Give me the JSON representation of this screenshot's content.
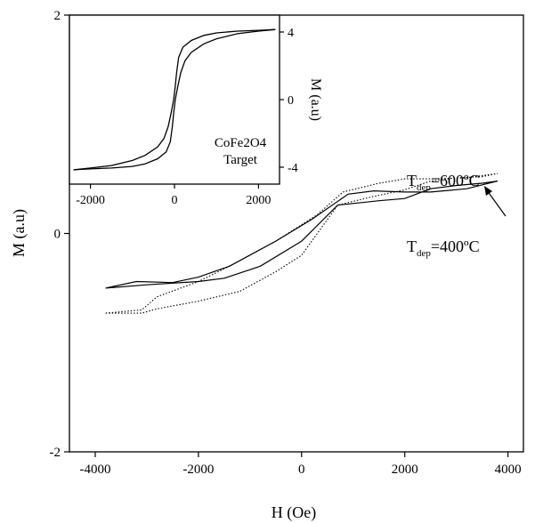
{
  "chart_data": [
    {
      "type": "line",
      "xlabel": "H (Oe)",
      "ylabel": "M (a.u)",
      "xlim": [
        -4500,
        4300
      ],
      "ylim": [
        -2,
        2
      ],
      "xticks": [
        -4000,
        -2000,
        0,
        2000,
        4000
      ],
      "yticks": [
        -2,
        0,
        2
      ],
      "xtick_labels": [
        "-4000",
        "-2000",
        "0",
        "2000",
        "4000"
      ],
      "ytick_labels": [
        "-2",
        "0",
        "2"
      ],
      "annotations": [
        {
          "base": "T",
          "sub": "dep",
          "rest": "=600ºC"
        },
        {
          "base": "T",
          "sub": "dep",
          "rest": "=400ºC"
        }
      ],
      "series": [
        {
          "style": "dotted",
          "x": [
            -3800,
            -3100,
            -2800,
            -2000,
            -1200,
            -500,
            0,
            700,
            1400,
            2000,
            2500,
            3000,
            3500,
            3800,
            3800,
            3200,
            2500,
            2000,
            1500,
            800,
            300,
            -500,
            -1400,
            -2000,
            -2800,
            -3100,
            -3800
          ],
          "y": [
            -0.73,
            -0.73,
            -0.69,
            -0.62,
            -0.53,
            -0.35,
            -0.2,
            0.26,
            0.34,
            0.4,
            0.48,
            0.51,
            0.52,
            0.55,
            0.55,
            0.51,
            0.5,
            0.5,
            0.46,
            0.38,
            0.17,
            -0.07,
            -0.3,
            -0.44,
            -0.58,
            -0.7,
            -0.73
          ]
        },
        {
          "style": "solid",
          "x": [
            -3800,
            -3000,
            -2000,
            -1500,
            -800,
            0,
            700,
            1500,
            2000,
            2500,
            3000,
            3500,
            3800,
            3800,
            3200,
            2500,
            2000,
            1400,
            900,
            200,
            -500,
            -1400,
            -2000,
            -2500,
            -3200,
            -3800
          ],
          "y": [
            -0.5,
            -0.47,
            -0.44,
            -0.41,
            -0.3,
            -0.07,
            0.26,
            0.3,
            0.32,
            0.41,
            0.44,
            0.46,
            0.48,
            0.48,
            0.41,
            0.38,
            0.38,
            0.39,
            0.36,
            0.13,
            -0.07,
            -0.3,
            -0.4,
            -0.45,
            -0.44,
            -0.5
          ]
        }
      ]
    },
    {
      "type": "line",
      "xlabel": "",
      "ylabel": "M (a.u)",
      "xlim": [
        -2500,
        2500
      ],
      "ylim": [
        -5,
        5
      ],
      "xticks": [
        -2000,
        0,
        2000
      ],
      "yticks": [
        -4,
        0,
        4
      ],
      "xtick_labels": [
        "-2000",
        "0",
        "2000"
      ],
      "ytick_labels": [
        "-4",
        "0",
        "4"
      ],
      "annotation": [
        "CoFe2O4",
        "Target"
      ],
      "series": [
        {
          "style": "solid",
          "x": [
            -2400,
            -2000,
            -1500,
            -1000,
            -700,
            -400,
            -250,
            -150,
            -80,
            -20,
            20,
            50,
            100,
            200,
            400,
            700,
            1000,
            1500,
            2000,
            2400
          ],
          "y": [
            -4.15,
            -4.05,
            -3.9,
            -3.6,
            -3.3,
            -2.8,
            -2.3,
            -1.6,
            -0.8,
            0.0,
            0.8,
            1.6,
            2.5,
            3.1,
            3.5,
            3.8,
            3.95,
            4.05,
            4.1,
            4.15
          ]
        },
        {
          "style": "solid",
          "x": [
            2400,
            2000,
            1500,
            1000,
            700,
            400,
            250,
            150,
            80,
            20,
            -20,
            -50,
            -100,
            -200,
            -400,
            -700,
            -1000,
            -1500,
            -2000,
            -2400
          ],
          "y": [
            4.15,
            4.05,
            3.9,
            3.6,
            3.3,
            2.8,
            2.3,
            1.6,
            0.8,
            0.0,
            -0.8,
            -1.6,
            -2.5,
            -3.1,
            -3.5,
            -3.8,
            -3.95,
            -4.05,
            -4.1,
            -4.15
          ]
        }
      ]
    }
  ]
}
